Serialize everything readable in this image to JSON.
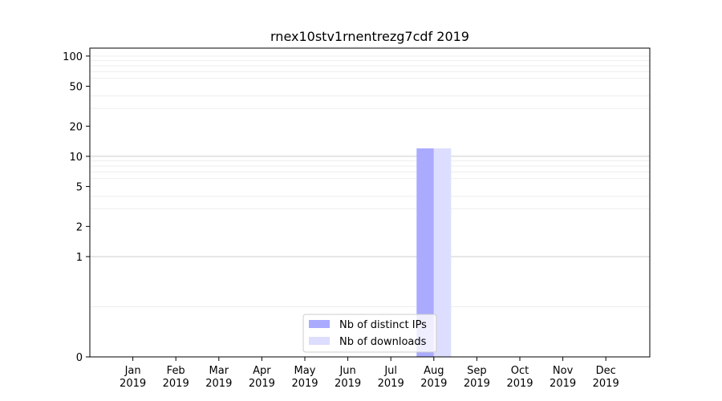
{
  "chart_data": {
    "type": "bar",
    "title": "rnex10stv1rnentrezg7cdf 2019",
    "xlabel": "",
    "ylabel": "",
    "yscale": "symlog",
    "ylim": [
      0,
      120
    ],
    "yticks": [
      0,
      1,
      2,
      5,
      10,
      20,
      50,
      100
    ],
    "grid": {
      "major": [
        1,
        10
      ],
      "minor": [
        0.5,
        3,
        4,
        6,
        7,
        8,
        9,
        30,
        40,
        60,
        70,
        80,
        90,
        100
      ]
    },
    "categories": [
      {
        "month": "Jan",
        "year": "2019"
      },
      {
        "month": "Feb",
        "year": "2019"
      },
      {
        "month": "Mar",
        "year": "2019"
      },
      {
        "month": "Apr",
        "year": "2019"
      },
      {
        "month": "May",
        "year": "2019"
      },
      {
        "month": "Jun",
        "year": "2019"
      },
      {
        "month": "Jul",
        "year": "2019"
      },
      {
        "month": "Aug",
        "year": "2019"
      },
      {
        "month": "Sep",
        "year": "2019"
      },
      {
        "month": "Oct",
        "year": "2019"
      },
      {
        "month": "Nov",
        "year": "2019"
      },
      {
        "month": "Dec",
        "year": "2019"
      }
    ],
    "series": [
      {
        "name": "Nb of distinct IPs",
        "color": "#aaaaff",
        "values": [
          0,
          0,
          0,
          0,
          0,
          0,
          0,
          12,
          0,
          0,
          0,
          0
        ]
      },
      {
        "name": "Nb of downloads",
        "color": "#ddddff",
        "values": [
          0,
          0,
          0,
          0,
          0,
          0,
          0,
          12,
          0,
          0,
          0,
          0
        ]
      }
    ],
    "legend": {
      "placement": "bottom-center"
    }
  }
}
